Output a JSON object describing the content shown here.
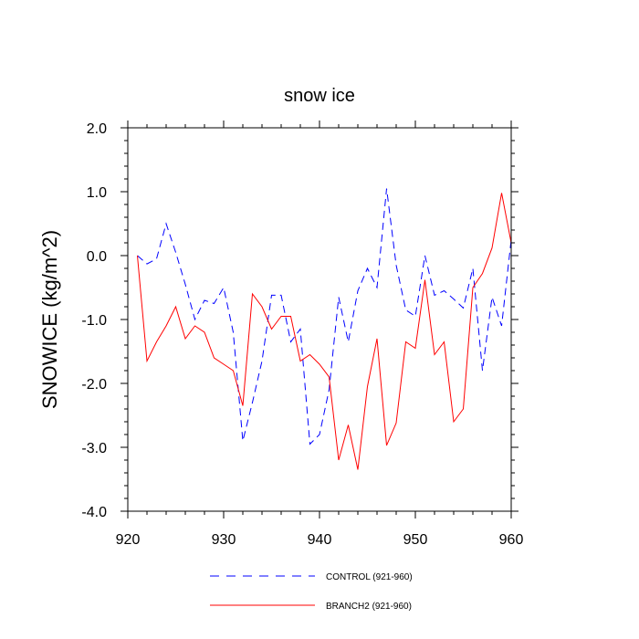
{
  "chart_data": {
    "type": "line",
    "title": "snow ice",
    "xlabel": "",
    "ylabel": "SNOWICE  (kg/m^2)",
    "xlim": [
      920,
      960
    ],
    "ylim": [
      -4.0,
      2.0
    ],
    "x_ticks": [
      920,
      930,
      940,
      950,
      960
    ],
    "x_tick_labels": [
      "920",
      "930",
      "940",
      "950",
      "960"
    ],
    "y_ticks": [
      -4.0,
      -3.0,
      -2.0,
      -1.0,
      0.0,
      1.0,
      2.0
    ],
    "y_tick_labels": [
      "-4.0",
      "-3.0",
      "-2.0",
      "-1.0",
      "0.0",
      "1.0",
      "2.0"
    ],
    "grid": false,
    "legend_position": "bottom",
    "x": [
      921,
      922,
      923,
      924,
      925,
      926,
      927,
      928,
      929,
      930,
      931,
      932,
      933,
      934,
      935,
      936,
      937,
      938,
      939,
      940,
      941,
      942,
      943,
      944,
      945,
      946,
      947,
      948,
      949,
      950,
      951,
      952,
      953,
      954,
      955,
      956,
      957,
      958,
      959,
      960
    ],
    "series": [
      {
        "name": "CONTROL (921-960)",
        "color": "#0000ff",
        "dash": "dashed",
        "values": [
          0.0,
          -0.13,
          -0.05,
          0.5,
          0.05,
          -0.45,
          -1.0,
          -0.7,
          -0.75,
          -0.5,
          -1.2,
          -2.9,
          -2.3,
          -1.65,
          -0.62,
          -0.62,
          -1.35,
          -1.15,
          -2.95,
          -2.8,
          -2.1,
          -0.65,
          -1.35,
          -0.55,
          -0.2,
          -0.5,
          1.05,
          -0.15,
          -0.85,
          -0.95,
          0.0,
          -0.62,
          -0.55,
          -0.68,
          -0.82,
          -0.2,
          -1.8,
          -0.65,
          -1.1,
          0.25
        ]
      },
      {
        "name": "BRANCH2 (921-960)",
        "color": "#ff0000",
        "dash": "solid",
        "values": [
          0.0,
          -1.65,
          -1.35,
          -1.1,
          -0.8,
          -1.3,
          -1.1,
          -1.2,
          -1.6,
          -1.7,
          -1.8,
          -2.35,
          -0.6,
          -0.8,
          -1.15,
          -0.95,
          -0.95,
          -1.65,
          -1.55,
          -1.7,
          -1.9,
          -3.2,
          -2.65,
          -3.35,
          -2.05,
          -1.3,
          -2.97,
          -2.62,
          -1.35,
          -1.45,
          -0.38,
          -1.55,
          -1.35,
          -2.6,
          -2.4,
          -0.5,
          -0.28,
          0.12,
          0.98,
          0.2
        ]
      }
    ]
  }
}
